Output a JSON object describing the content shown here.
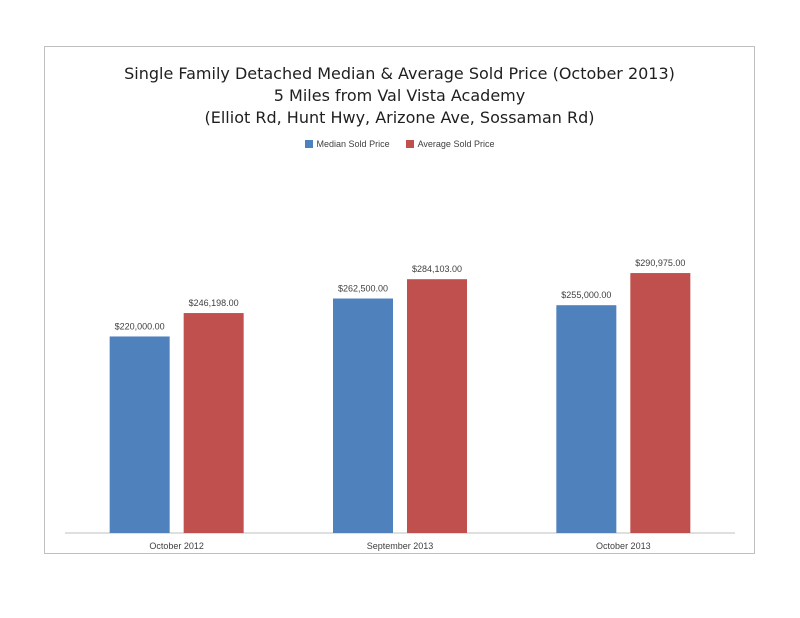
{
  "chart_data": {
    "type": "bar",
    "title_lines": [
      "Single Family Detached Median & Average Sold Price (October 2013)",
      "5 Miles from Val Vista Academy",
      "(Elliot Rd, Hunt Hwy, Arizone Ave, Sossaman Rd)"
    ],
    "categories": [
      "October 2012",
      "September 2013",
      "October 2013"
    ],
    "series": [
      {
        "name": "Median Sold Price",
        "color": "#4f81bd",
        "values": [
          220000,
          262500,
          255000
        ],
        "labels": [
          "$220,000.00",
          "$262,500.00",
          "$255,000.00"
        ]
      },
      {
        "name": "Average Sold Price",
        "color": "#c0504d",
        "values": [
          246198,
          284103,
          290975
        ],
        "labels": [
          "$246,198.00",
          "$284,103.00",
          "$290,975.00"
        ]
      }
    ],
    "ylim": [
      0,
      450000
    ],
    "grid": false,
    "legend_position": "top"
  }
}
